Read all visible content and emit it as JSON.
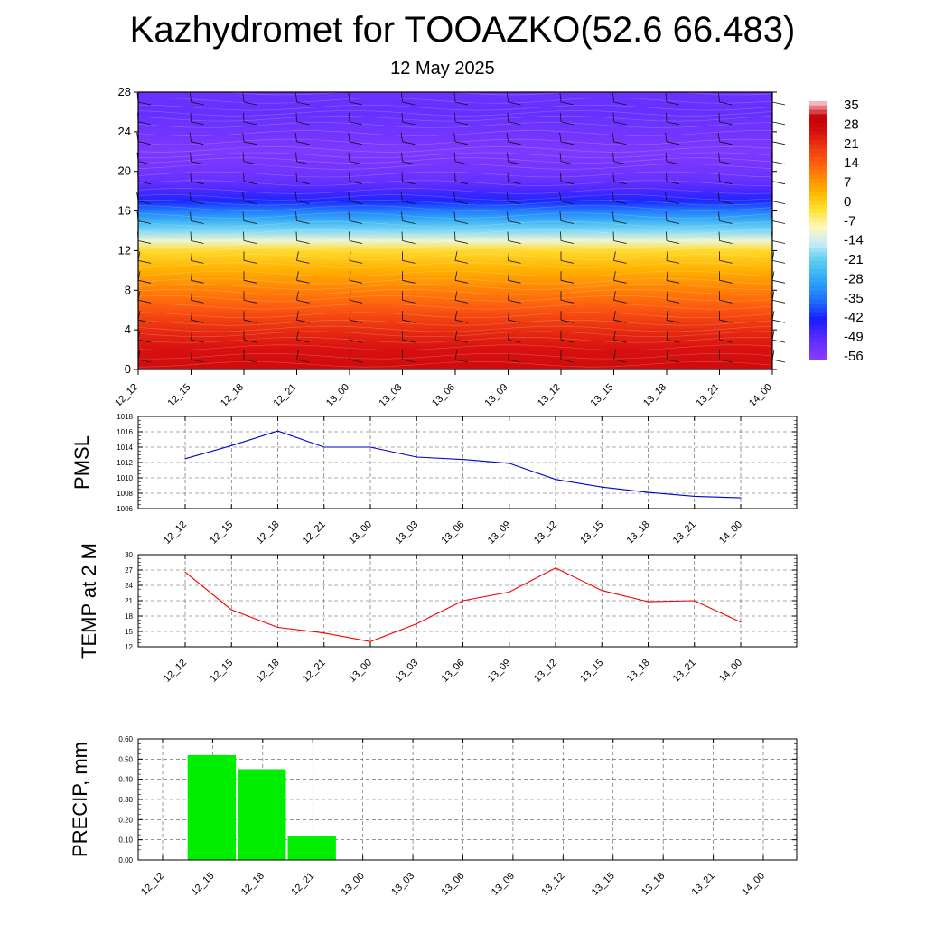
{
  "title": "Kazhydromet for TOOAZKO(52.6 66.483)",
  "subtitle": "12 May 2025",
  "chart_data": [
    {
      "type": "heatmap",
      "panel": "temperature-height cross-section with wind barbs",
      "x_ticks": [
        "12_12",
        "12_15",
        "12_18",
        "12_21",
        "13_00",
        "13_03",
        "13_06",
        "13_09",
        "13_12",
        "13_15",
        "13_18",
        "13_21",
        "14_00"
      ],
      "y_ticks": [
        "0",
        "4",
        "8",
        "12",
        "16",
        "20",
        "24",
        "28"
      ],
      "ylim": [
        0,
        28
      ],
      "colorbar_labels": [
        "35",
        "28",
        "21",
        "14",
        "7",
        "0",
        "-7",
        "-14",
        "-21",
        "-28",
        "-35",
        "-42",
        "-49",
        "-56"
      ],
      "colorbar_range": [
        -60,
        38
      ],
      "approx_temperature_profile": [
        {
          "y": 0,
          "value": 28
        },
        {
          "y": 2,
          "value": 26
        },
        {
          "y": 4,
          "value": 22
        },
        {
          "y": 6,
          "value": 16
        },
        {
          "y": 8,
          "value": 10
        },
        {
          "y": 10,
          "value": 4
        },
        {
          "y": 12,
          "value": -2
        },
        {
          "y": 13,
          "value": -12
        },
        {
          "y": 14,
          "value": -20
        },
        {
          "y": 15,
          "value": -28
        },
        {
          "y": 16,
          "value": -36
        },
        {
          "y": 17,
          "value": -44
        },
        {
          "y": 18,
          "value": -50
        },
        {
          "y": 19,
          "value": -54
        },
        {
          "y": 20,
          "value": -56
        },
        {
          "y": 22,
          "value": -58
        },
        {
          "y": 24,
          "value": -56
        },
        {
          "y": 26,
          "value": -54
        },
        {
          "y": 28,
          "value": -55
        }
      ],
      "colors": {
        "high": "#d40000",
        "mid": "#ffff00",
        "zero": "#fff8b0",
        "low_cyan": "#3ec8f0",
        "low_blue": "#1a1aff",
        "lowest": "#8a3cff"
      }
    },
    {
      "type": "line",
      "ylabel": "PMSL",
      "x": [
        "12_12",
        "12_15",
        "12_18",
        "12_21",
        "13_00",
        "13_03",
        "13_06",
        "13_09",
        "13_12",
        "13_15",
        "13_18",
        "13_21",
        "14_00"
      ],
      "y_ticks": [
        "1006",
        "1008",
        "1010",
        "1012",
        "1014",
        "1016",
        "1018"
      ],
      "ylim": [
        1006,
        1018
      ],
      "series": [
        {
          "values": [
            1012.5,
            1014.2,
            1016.1,
            1014.0,
            1014.0,
            1012.7,
            1012.4,
            1011.9,
            1009.8,
            1008.8,
            1008.1,
            1007.6,
            1007.4
          ]
        }
      ],
      "color": "#0000cc"
    },
    {
      "type": "line",
      "ylabel": "TEMP at 2 M",
      "x": [
        "12_12",
        "12_15",
        "12_18",
        "12_21",
        "13_00",
        "13_03",
        "13_06",
        "13_09",
        "13_12",
        "13_15",
        "13_18",
        "13_21",
        "14_00"
      ],
      "y_ticks": [
        "12",
        "15",
        "18",
        "21",
        "24",
        "27",
        "30"
      ],
      "ylim": [
        12,
        30
      ],
      "series": [
        {
          "values": [
            26.6,
            19.2,
            15.8,
            14.7,
            13.0,
            16.5,
            21.0,
            22.7,
            27.4,
            23.0,
            20.8,
            21.0,
            16.8
          ]
        }
      ],
      "color": "#ee0000"
    },
    {
      "type": "bar",
      "ylabel": "PRECIP, mm",
      "categories": [
        "12_12",
        "12_15",
        "12_18",
        "12_21",
        "13_00",
        "13_03",
        "13_06",
        "13_09",
        "13_12",
        "13_15",
        "13_18",
        "13_21",
        "14_00"
      ],
      "y_ticks": [
        "0.00",
        "0.10",
        "0.20",
        "0.30",
        "0.40",
        "0.50",
        "0.60"
      ],
      "ylim": [
        0,
        0.6
      ],
      "values": [
        0,
        0.52,
        0.45,
        0.12,
        0,
        0,
        0,
        0,
        0,
        0,
        0,
        0,
        0
      ],
      "color": "#00ee00"
    }
  ]
}
